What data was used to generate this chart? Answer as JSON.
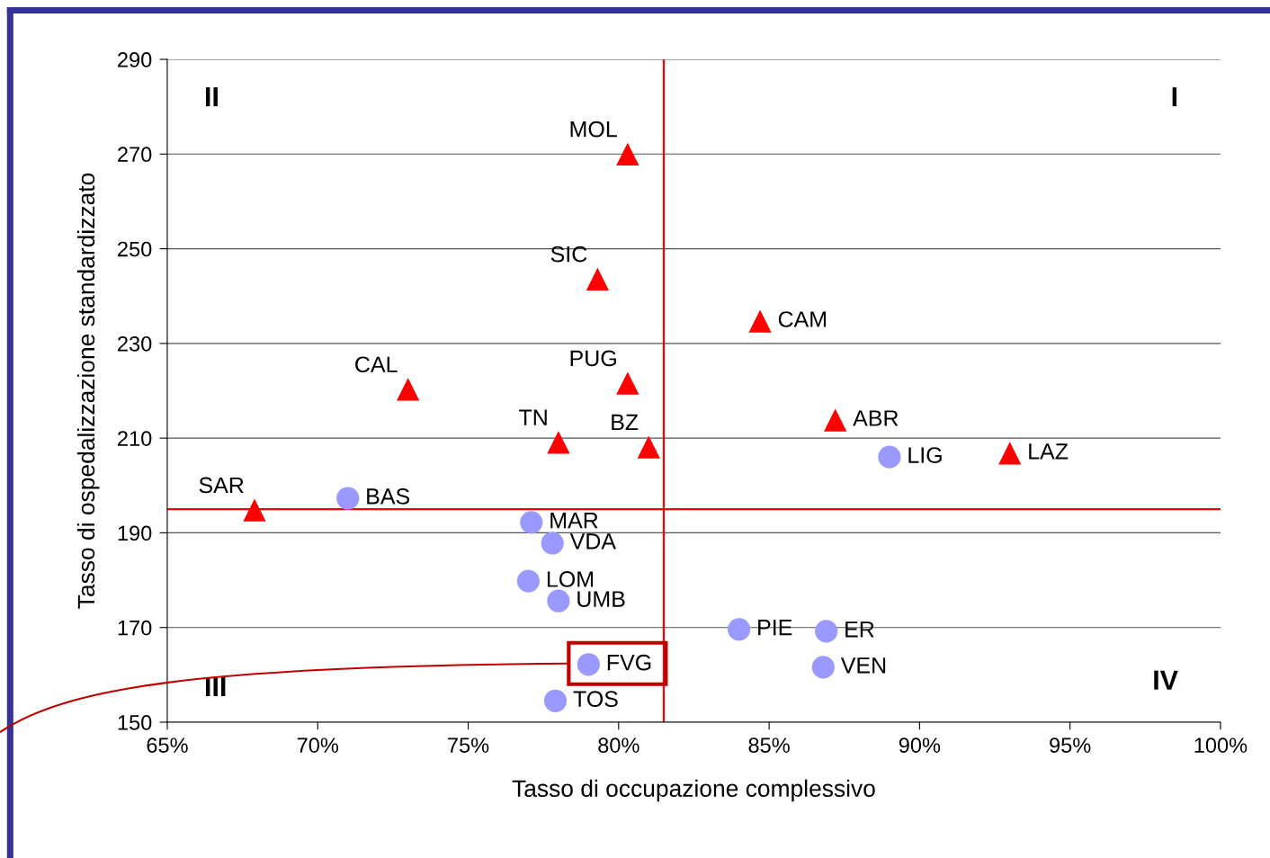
{
  "chart_data": {
    "type": "scatter",
    "xlabel": "Tasso di occupazione complessivo",
    "ylabel": "Tasso di ospedalizzazione standardizzato",
    "xlim": [
      65,
      100
    ],
    "xticks": [
      {
        "value": 65,
        "label": "65%"
      },
      {
        "value": 70,
        "label": "70%"
      },
      {
        "value": 75,
        "label": "75%"
      },
      {
        "value": 80,
        "label": "80%"
      },
      {
        "value": 85,
        "label": "85%"
      },
      {
        "value": 90,
        "label": "90%"
      },
      {
        "value": 95,
        "label": "95%"
      },
      {
        "value": 100,
        "label": "100%"
      }
    ],
    "ylim": [
      150,
      290
    ],
    "yticks": [
      150,
      170,
      190,
      210,
      230,
      250,
      270,
      290
    ],
    "grid": "y",
    "legend": false,
    "series": [
      {
        "color": "#ff0000",
        "marker": "triangle",
        "x": [
          80.3,
          79.3,
          84.7,
          73.0,
          80.3,
          87.2,
          78.0,
          81.0,
          93.0,
          67.9
        ],
        "values": [
          270,
          243.6,
          234.7,
          220.3,
          221.6,
          213.8,
          209.1,
          208.1,
          206.8,
          194.8
        ]
      },
      {
        "color": "#9999ff",
        "marker": "circle",
        "x": [
          89.0,
          71.0,
          77.1,
          77.8,
          77.0,
          78.0,
          84.0,
          86.9,
          79.0,
          86.8,
          77.9
        ],
        "values": [
          206.0,
          197.3,
          192.2,
          187.8,
          179.8,
          175.6,
          169.6,
          169.2,
          162.2,
          161.6,
          154.5
        ]
      }
    ],
    "ref_lines": [
      {
        "axis": "x",
        "value": 81.5,
        "color": "#ff0000"
      },
      {
        "axis": "y",
        "value": 195,
        "color": "#ff0000"
      }
    ],
    "annotations": [
      "I",
      "II",
      "III",
      "IV",
      {
        "text": "MOL",
        "x": 80.3,
        "y": 270
      },
      {
        "text": "SIC",
        "x": 79.3,
        "y": 243.6
      },
      {
        "text": "CAM",
        "x": 84.7,
        "y": 234.7
      },
      {
        "text": "CAL",
        "x": 73.0,
        "y": 220.3
      },
      {
        "text": "PUG",
        "x": 80.3,
        "y": 221.6
      },
      {
        "text": "ABR",
        "x": 87.2,
        "y": 213.8
      },
      {
        "text": "TN",
        "x": 78.0,
        "y": 209.1
      },
      {
        "text": "BZ",
        "x": 81.0,
        "y": 208.1
      },
      {
        "text": "LAZ",
        "x": 93.0,
        "y": 206.8
      },
      {
        "text": "SAR",
        "x": 67.9,
        "y": 194.8
      },
      {
        "text": "LIG",
        "x": 89.0,
        "y": 206.0
      },
      {
        "text": "BAS",
        "x": 71.0,
        "y": 197.3
      },
      {
        "text": "MAR",
        "x": 77.1,
        "y": 192.2
      },
      {
        "text": "VDA",
        "x": 77.8,
        "y": 187.8
      },
      {
        "text": "LOM",
        "x": 77.0,
        "y": 179.8
      },
      {
        "text": "UMB",
        "x": 78.0,
        "y": 175.6
      },
      {
        "text": "PIE",
        "x": 84.0,
        "y": 169.6
      },
      {
        "text": "ER",
        "x": 86.9,
        "y": 169.2
      },
      {
        "text": "FVG",
        "x": 79.0,
        "y": 162.2
      },
      {
        "text": "VEN",
        "x": 86.8,
        "y": 161.6
      },
      {
        "text": "TOS",
        "x": 77.9,
        "y": 154.5
      }
    ]
  }
}
